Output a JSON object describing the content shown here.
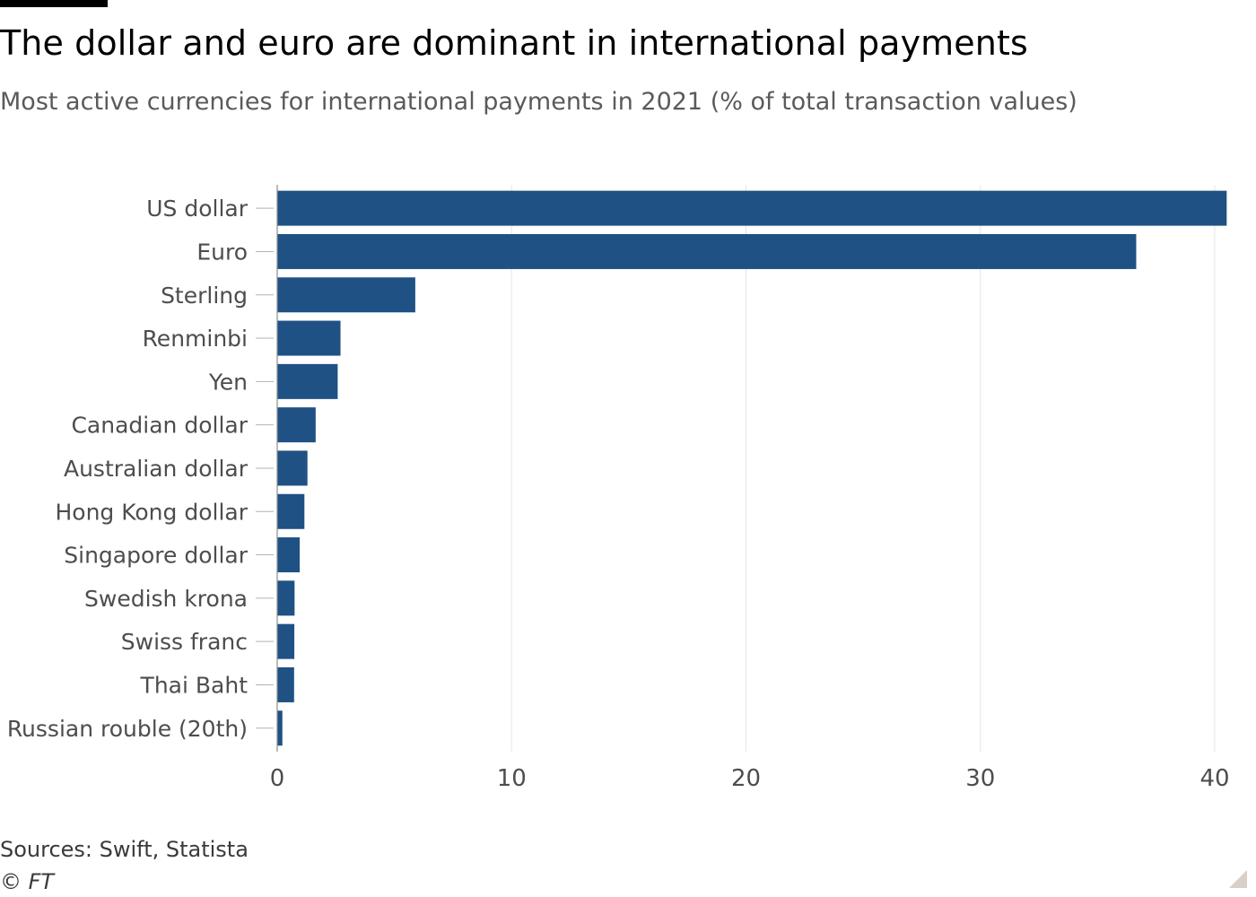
{
  "colors": {
    "bar": "#1f5184",
    "grid": "#e6e6e6",
    "axis": "#b3b3b3",
    "label": "#4d4d4d"
  },
  "chart_data": {
    "type": "bar",
    "orientation": "horizontal",
    "title": "The dollar and euro are dominant in international payments",
    "subtitle": "Most active currencies for international payments in 2021 (% of total transaction values)",
    "categories": [
      "US dollar",
      "Euro",
      "Sterling",
      "Renminbi",
      "Yen",
      "Canadian dollar",
      "Australian dollar",
      "Hong Kong dollar",
      "Singapore dollar",
      "Swedish krona",
      "Swiss franc",
      "Thai Baht",
      "Russian rouble (20th)"
    ],
    "values": [
      40.51,
      36.65,
      5.89,
      2.7,
      2.58,
      1.64,
      1.29,
      1.16,
      0.96,
      0.74,
      0.73,
      0.72,
      0.22
    ],
    "xlim": [
      0,
      40
    ],
    "xticks": [
      0,
      10,
      20,
      30,
      40
    ],
    "grid": true,
    "legend": false
  },
  "footer": {
    "source": "Sources: Swift, Statista",
    "copyright": "© FT"
  }
}
